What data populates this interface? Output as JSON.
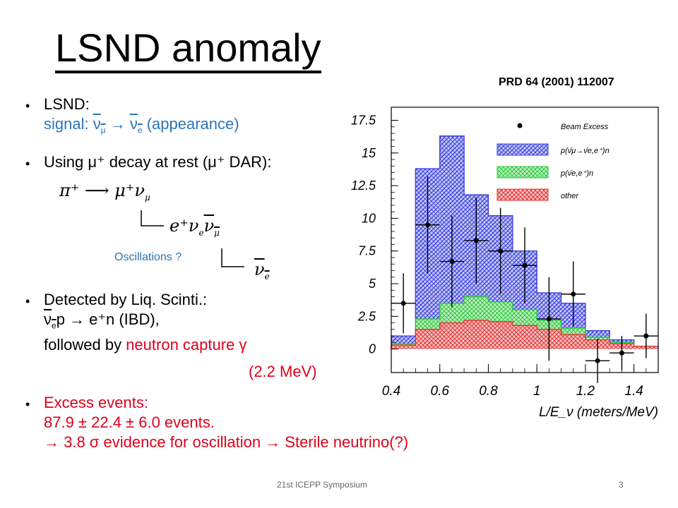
{
  "title": "LSND anomaly",
  "reference": "PRD 64 (2001) 112007",
  "bullets": {
    "b1_line1": "LSND:",
    "b1_line2_prefix": "signal: ",
    "b1_line2_nu_mu": "ν",
    "b1_line2_mu": "μ",
    "b1_arrow": "→",
    "b1_nu_e": "ν",
    "b1_e": "e",
    "b1_suffix": "(appearance)",
    "b2_text": "Using μ⁺ decay at rest (μ⁺ DAR):",
    "decay1": "π⁺  ⟶  μ⁺ν",
    "decay1_sub": "μ",
    "decay2": "e⁺ν",
    "decay2_sub1": "e",
    "decay2_nu": "ν",
    "decay2_sub2": "μ",
    "oscillations": "Oscillations ?",
    "decay3": "ν",
    "decay3_sub": "e",
    "b3_line1": "Detected by Liq. Scinti.:",
    "b3_line2": "ν",
    "b3_line2_sub": "e",
    "b3_line2_rest": "p  → e⁺n (IBD),",
    "b3_line3_prefix": "followed by ",
    "b3_line3_red": "neutron capture γ",
    "b3_line4": "(2.2 MeV)",
    "b4_line1": "Excess events:",
    "b4_line2": "87.9 ± 22.4 ± 6.0 events.",
    "b4_line3": "→ 3.8 σ evidence for oscillation → Sterile neutrino(?)"
  },
  "footer": {
    "center": "21st ICEPP Symposium",
    "page": "3"
  },
  "colors": {
    "title": "#000000",
    "blue_text": "#2e74b5",
    "red_text": "#e0001b",
    "hist_blue": "#3b40e6",
    "hist_green": "#2ec83a",
    "hist_red": "#e83434"
  },
  "chart_data": {
    "type": "bar",
    "xlabel": "L/E_ν (meters/MeV)",
    "xlim": [
      0.4,
      1.5
    ],
    "ylim": [
      -1.8,
      18.5
    ],
    "x_ticks": [
      "0.4",
      "0.6",
      "0.8",
      "1",
      "1.2",
      "1.4"
    ],
    "y_ticks": [
      "0",
      "2.5",
      "5",
      "7.5",
      "10",
      "12.5",
      "15",
      "17.5"
    ],
    "bin_edges": [
      0.4,
      0.5,
      0.6,
      0.7,
      0.8,
      0.9,
      1.0,
      1.1,
      1.2,
      1.3,
      1.4,
      1.5
    ],
    "series": [
      {
        "name": "p(ν̄μ→ν̄e,e⁺)n",
        "values": [
          1.0,
          13.8,
          16.3,
          11.8,
          10.2,
          7.5,
          4.3,
          3.5,
          1.4,
          0.7,
          0.2
        ]
      },
      {
        "name": "p(ν̄e,e⁺)n",
        "values": [
          0.4,
          2.3,
          3.5,
          4.0,
          3.6,
          3.0,
          2.2,
          1.6,
          0.9,
          0.5,
          0.2
        ]
      },
      {
        "name": "other",
        "values": [
          0.3,
          1.5,
          2.0,
          2.2,
          2.1,
          1.8,
          1.5,
          1.1,
          0.7,
          0.4,
          0.2
        ]
      }
    ],
    "beam_excess": {
      "name": "Beam Excess",
      "x": [
        0.45,
        0.55,
        0.65,
        0.75,
        0.85,
        0.95,
        1.05,
        1.15,
        1.25,
        1.35,
        1.45
      ],
      "y": [
        3.5,
        9.5,
        6.7,
        8.3,
        7.5,
        6.4,
        2.3,
        4.2,
        -0.9,
        -0.3,
        1.0
      ],
      "err": [
        2.3,
        3.7,
        3.5,
        3.3,
        3.3,
        2.9,
        3.2,
        2.5,
        1.7,
        1.3,
        1.7
      ]
    },
    "legend_position": "top-right",
    "grid": false
  }
}
